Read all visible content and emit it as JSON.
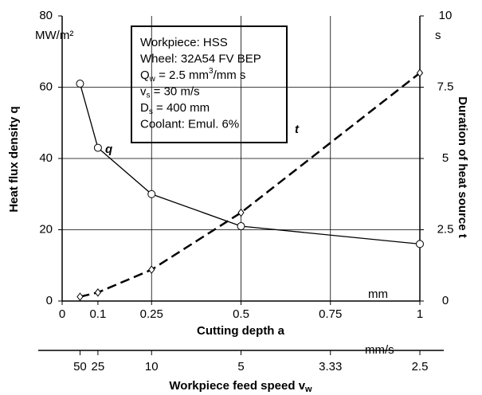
{
  "chart_data": {
    "type": "line",
    "xlabel": "Cutting depth  a",
    "ylabel": "Heat flux density  q",
    "y2label": "Duration of heat source  t",
    "x2label": "Workpiece feed speed  v",
    "x2label_sub": "w",
    "yunit": "MW/m²",
    "y2unit": "s",
    "xunit": "mm",
    "x2unit": "mm/s",
    "xlim": [
      0,
      1
    ],
    "xticks": [
      0,
      0.1,
      0.25,
      0.5,
      0.75,
      1
    ],
    "ylim": [
      0,
      80
    ],
    "yticks": [
      0,
      20,
      40,
      60,
      80
    ],
    "y2lim": [
      0,
      10
    ],
    "y2ticks": [
      0,
      2.5,
      5,
      7.5,
      10
    ],
    "x2ticks": [
      {
        "value": 0.05,
        "label": "50"
      },
      {
        "value": 0.1,
        "label": "25"
      },
      {
        "value": 0.25,
        "label": "10"
      },
      {
        "value": 0.5,
        "label": "5"
      },
      {
        "value": 0.75,
        "label": "3.33"
      },
      {
        "value": 1,
        "label": "2.5"
      }
    ],
    "grid": true,
    "x": [
      0.05,
      0.1,
      0.25,
      0.5,
      1
    ],
    "series": [
      {
        "name": "q",
        "color": "#000000",
        "marker": "circle",
        "dash": false,
        "values": [
          61,
          43,
          30,
          21,
          16
        ]
      },
      {
        "name": "t",
        "color": "#000000",
        "marker": "diamond",
        "dash": true,
        "axis": "y2",
        "values": [
          0.15,
          0.3,
          1.1,
          3.1,
          8
        ]
      }
    ],
    "annotation": [
      [
        {
          "text": "Workpiece: HSS"
        }
      ],
      [
        {
          "text": "Wheel: 32A54 FV BEP"
        }
      ],
      [
        {
          "text": "Q"
        },
        {
          "text": "w",
          "style": "sub"
        },
        {
          "text": " = 2.5 mm"
        },
        {
          "text": "3",
          "style": "sup"
        },
        {
          "text": "/mm s"
        }
      ],
      [
        {
          "text": "v"
        },
        {
          "text": "s",
          "style": "sub"
        },
        {
          "text": " = 30 m/s"
        }
      ],
      [
        {
          "text": "D"
        },
        {
          "text": "s",
          "style": "sub"
        },
        {
          "text": " = 400 mm"
        }
      ],
      [
        {
          "text": "Coolant: Emul. 6%"
        }
      ]
    ]
  }
}
